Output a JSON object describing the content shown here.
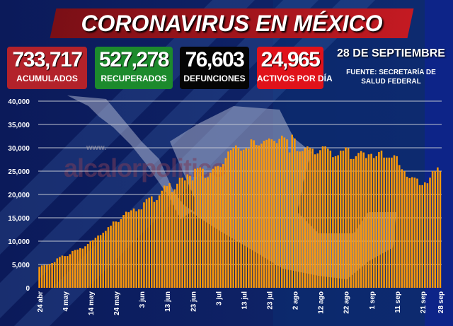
{
  "header": {
    "title": "CORONAVIRUS EN MÉXICO"
  },
  "stats": [
    {
      "value": "733,717",
      "label": "ACUMULADOS",
      "color": "#b3222a"
    },
    {
      "value": "527,278",
      "label": "RECUPERADOS",
      "color": "#1c8a2c"
    },
    {
      "value": "76,603",
      "label": "DEFUNCIONES",
      "color": "#050505"
    },
    {
      "value": "24,965",
      "label": "ACTIVOS POR DÍA",
      "color": "#e0121a"
    }
  ],
  "date": "28 DE SEPTIEMBRE",
  "source": [
    "FUENTE: SECRETARÍA DE",
    "SALUD FEDERAL"
  ],
  "watermark": {
    "www": "www.",
    "name": "alcalorpolitico",
    "suffix": ".com"
  },
  "colors": {
    "bar": "#ff9a0a",
    "grid": "#c0c4d0",
    "background": "#0b1a5a"
  },
  "chart_data": {
    "type": "bar",
    "title": "",
    "xlabel": "",
    "ylabel": "",
    "ylim": [
      0,
      40000
    ],
    "yticks": [
      0,
      5000,
      10000,
      15000,
      20000,
      25000,
      30000,
      35000,
      40000
    ],
    "ytick_labels": [
      "0",
      "5,000",
      "10,000",
      "15,000",
      "20,000",
      "25,000",
      "30,000",
      "35,000",
      "40,000"
    ],
    "grid": true,
    "xtick_labels": [
      {
        "index": 0,
        "label": "24 abr"
      },
      {
        "index": 10,
        "label": "4 may"
      },
      {
        "index": 20,
        "label": "14 may"
      },
      {
        "index": 30,
        "label": "24 may"
      },
      {
        "index": 40,
        "label": "3 jun"
      },
      {
        "index": 50,
        "label": "13 jun"
      },
      {
        "index": 60,
        "label": "23 jun"
      },
      {
        "index": 70,
        "label": "3 jul"
      },
      {
        "index": 80,
        "label": "13 jul"
      },
      {
        "index": 90,
        "label": "23 jul"
      },
      {
        "index": 100,
        "label": "2 ago"
      },
      {
        "index": 110,
        "label": "12 ago"
      },
      {
        "index": 120,
        "label": "22 ago"
      },
      {
        "index": 130,
        "label": "1 sep"
      },
      {
        "index": 140,
        "label": "11 sep"
      },
      {
        "index": 150,
        "label": "21 sep"
      },
      {
        "index": 157,
        "label": "28 sep"
      }
    ],
    "series": [
      {
        "name": "Activos por día",
        "values": [
          4500,
          4800,
          4900,
          4900,
          5100,
          5300,
          5500,
          6300,
          6600,
          6900,
          6800,
          6800,
          7200,
          7900,
          8100,
          8200,
          8500,
          8400,
          8900,
          9400,
          10000,
          10200,
          10700,
          11200,
          11300,
          11800,
          12200,
          13000,
          13300,
          14200,
          14200,
          14100,
          14700,
          15600,
          16300,
          16200,
          16600,
          17000,
          16400,
          16800,
          16800,
          18300,
          19000,
          19300,
          19600,
          18400,
          18800,
          19800,
          20800,
          21900,
          21800,
          22400,
          20500,
          21100,
          22300,
          23600,
          23600,
          23000,
          24300,
          24000,
          23000,
          25500,
          25600,
          25800,
          25500,
          23500,
          23700,
          24700,
          25500,
          26000,
          26100,
          25900,
          26500,
          27800,
          29200,
          29500,
          30000,
          30500,
          30000,
          29400,
          29600,
          30000,
          29800,
          31800,
          31600,
          30600,
          30500,
          30900,
          31500,
          31700,
          32000,
          31800,
          31500,
          31000,
          31900,
          32600,
          32200,
          31800,
          29000,
          32800,
          32000,
          29300,
          29200,
          29300,
          29900,
          30300,
          30000,
          29800,
          28600,
          28800,
          29500,
          30300,
          30300,
          29800,
          29400,
          28000,
          28200,
          28400,
          29400,
          29400,
          30100,
          29900,
          27600,
          27600,
          28200,
          28900,
          29300,
          29000,
          27800,
          28600,
          28700,
          27800,
          28200,
          29100,
          29400,
          27900,
          27900,
          27900,
          27900,
          28400,
          28200,
          26300,
          25400,
          25000,
          23800,
          23500,
          23700,
          23600,
          23400,
          22000,
          22000,
          22600,
          22400,
          23600,
          25000,
          25000,
          25800,
          24965
        ]
      }
    ]
  }
}
